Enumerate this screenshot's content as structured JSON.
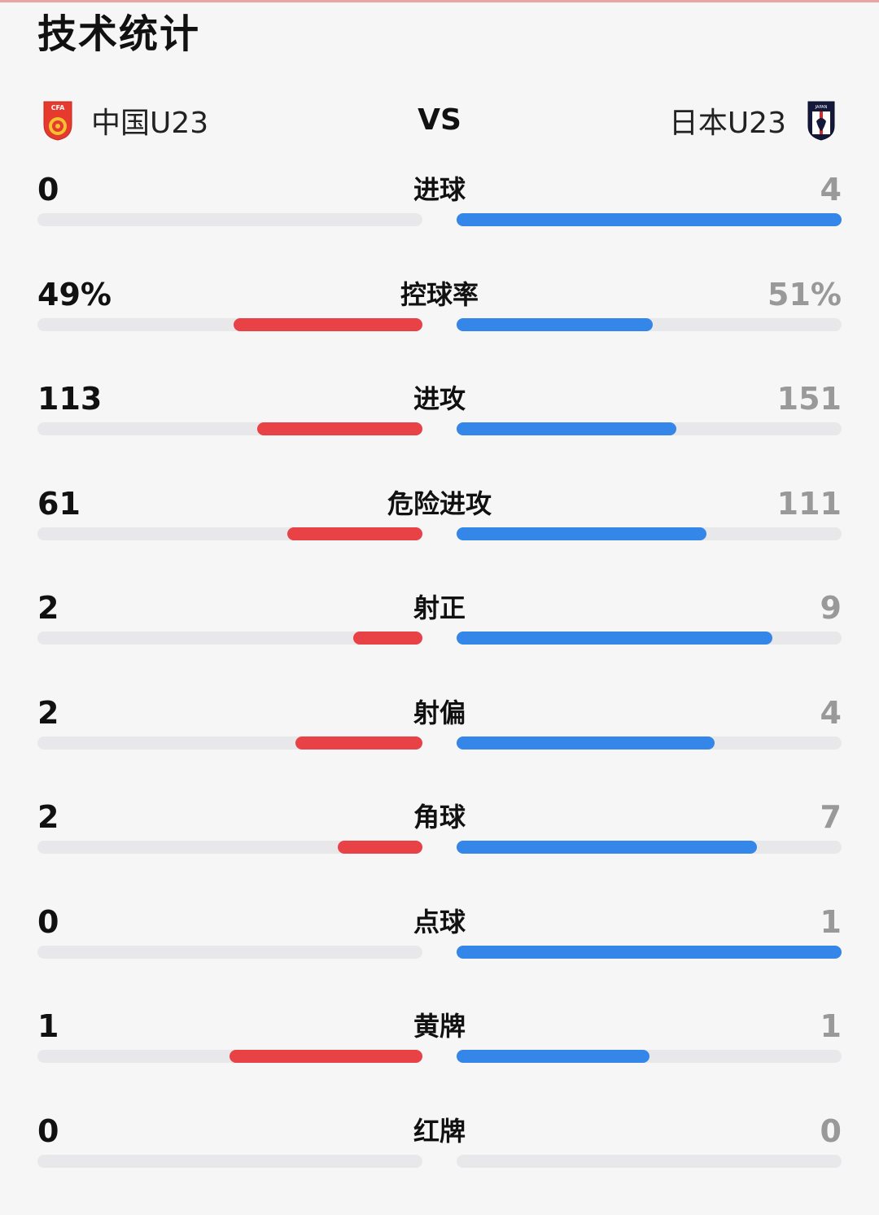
{
  "title": "技术统计",
  "header": {
    "home_team": "中国U23",
    "away_team": "日本U23",
    "vs": "VS",
    "home_crest_text": "CFA",
    "away_crest_text": "JAPAN"
  },
  "colors": {
    "home_bar": "#e84146",
    "away_bar": "#3486e8",
    "track": "#e8e8ea",
    "home_value": "#111111",
    "away_value": "#999999"
  },
  "stats": [
    {
      "label": "进球",
      "home": "0",
      "away": "4",
      "home_share": 0.0,
      "away_share": 1.0
    },
    {
      "label": "控球率",
      "home": "49%",
      "away": "51%",
      "home_share": 0.49,
      "away_share": 0.51
    },
    {
      "label": "进攻",
      "home": "113",
      "away": "151",
      "home_share": 0.43,
      "away_share": 0.57
    },
    {
      "label": "危险进攻",
      "home": "61",
      "away": "111",
      "home_share": 0.35,
      "away_share": 0.65
    },
    {
      "label": "射正",
      "home": "2",
      "away": "9",
      "home_share": 0.18,
      "away_share": 0.82
    },
    {
      "label": "射偏",
      "home": "2",
      "away": "4",
      "home_share": 0.33,
      "away_share": 0.67
    },
    {
      "label": "角球",
      "home": "2",
      "away": "7",
      "home_share": 0.22,
      "away_share": 0.78
    },
    {
      "label": "点球",
      "home": "0",
      "away": "1",
      "home_share": 0.0,
      "away_share": 1.0
    },
    {
      "label": "黄牌",
      "home": "1",
      "away": "1",
      "home_share": 0.5,
      "away_share": 0.5
    },
    {
      "label": "红牌",
      "home": "0",
      "away": "0",
      "home_share": 0.0,
      "away_share": 0.0
    }
  ]
}
